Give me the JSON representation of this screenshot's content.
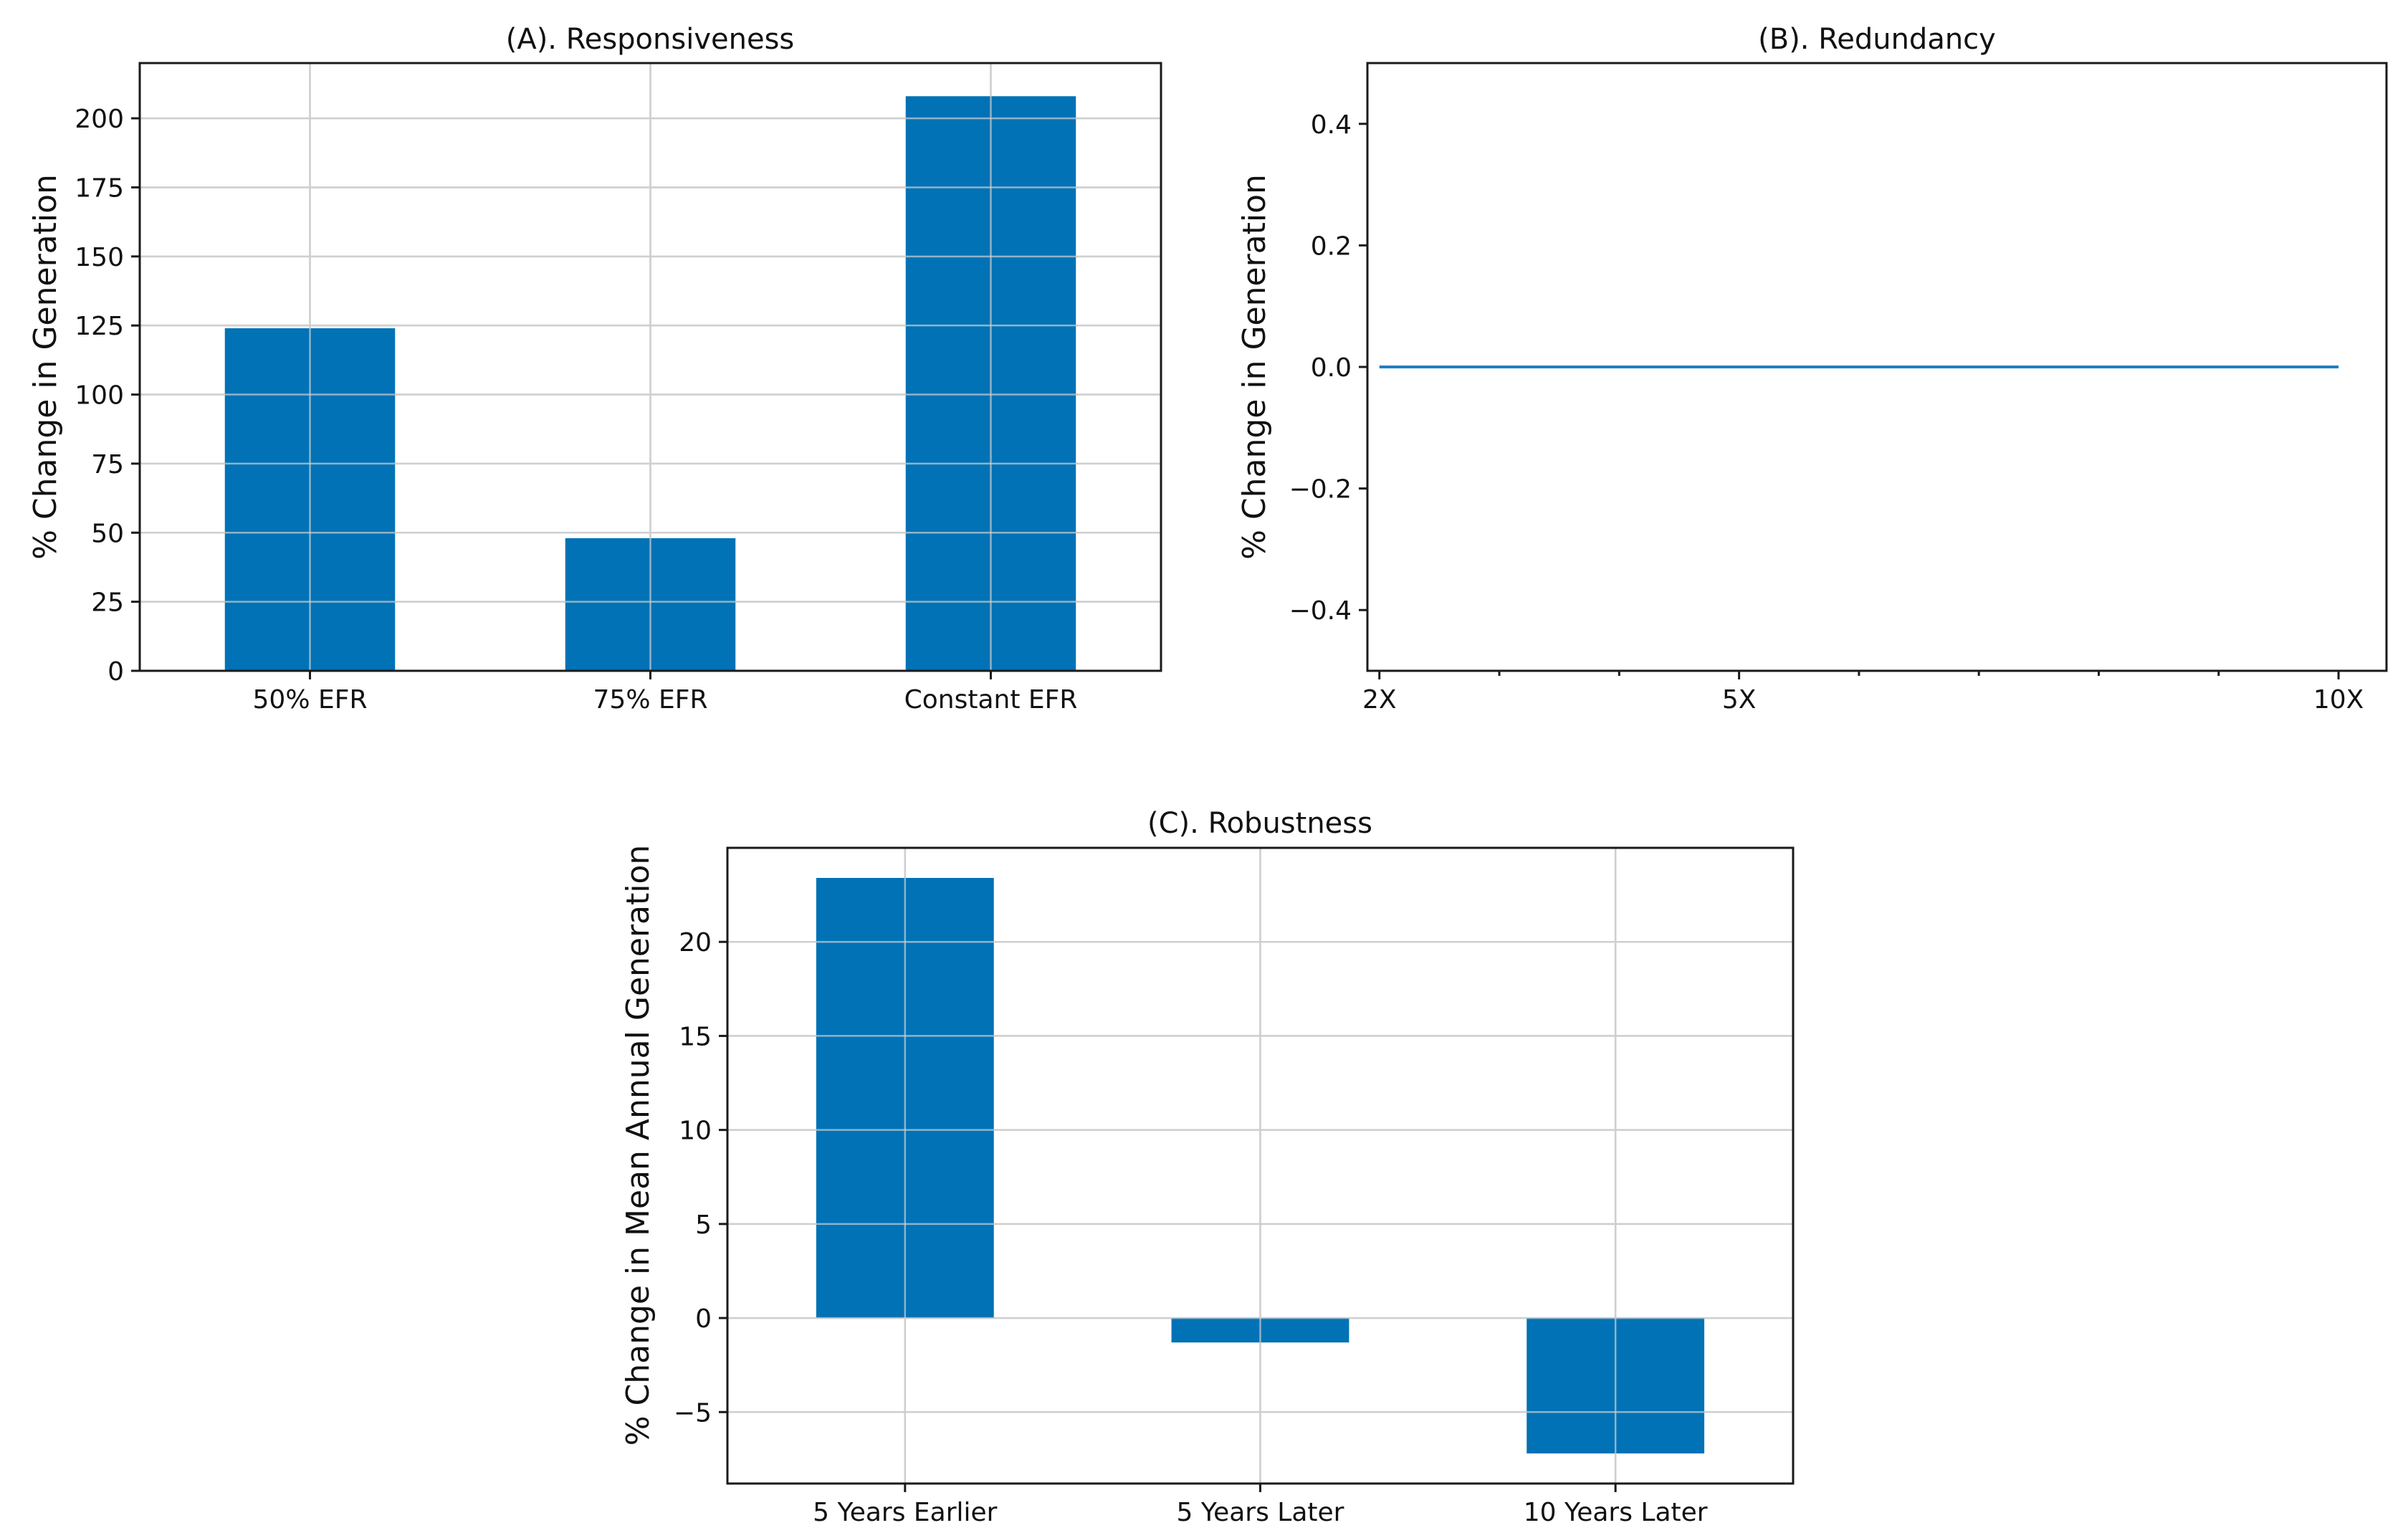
{
  "colors": {
    "bar": "#0072B5",
    "line": "#1f7fc0"
  },
  "chart_data": [
    {
      "id": "A",
      "type": "bar",
      "title": "(A). Responsiveness",
      "xlabel": "",
      "ylabel": "% Change in Generation",
      "categories": [
        "50% EFR",
        "75% EFR",
        "Constant EFR"
      ],
      "values": [
        124,
        48,
        208
      ],
      "ylim": [
        0,
        220
      ],
      "yticks": [
        0,
        25,
        50,
        75,
        100,
        125,
        150,
        175,
        200
      ],
      "ytick_labels": [
        "0",
        "25",
        "50",
        "75",
        "100",
        "125",
        "150",
        "175",
        "200"
      ],
      "grid": true
    },
    {
      "id": "B",
      "type": "line",
      "title": "(B). Redundancy",
      "xlabel": "",
      "ylabel": "% Change in Generation",
      "x": [
        2,
        3,
        4,
        5,
        6,
        7,
        8,
        9,
        10
      ],
      "values": [
        0,
        0,
        0,
        0,
        0,
        0,
        0,
        0,
        0
      ],
      "xlim": [
        1.9,
        10.4
      ],
      "xticks": [
        2,
        5,
        10
      ],
      "xtick_labels": [
        "2X",
        "5X",
        "10X"
      ],
      "ylim": [
        -0.5,
        0.5
      ],
      "yticks": [
        -0.4,
        -0.2,
        0.0,
        0.2,
        0.4
      ],
      "ytick_labels": [
        "−0.4",
        "−0.2",
        "0.0",
        "0.2",
        "0.4"
      ],
      "grid": false
    },
    {
      "id": "C",
      "type": "bar",
      "title": "(C). Robustness",
      "xlabel": "",
      "ylabel": "% Change in Mean Annual Generation",
      "categories": [
        "5 Years Earlier",
        "5 Years Later",
        "10 Years Later"
      ],
      "values": [
        23.4,
        -1.3,
        -7.2
      ],
      "ylim": [
        -8.8,
        25.0
      ],
      "yticks": [
        -5,
        0,
        5,
        10,
        15,
        20
      ],
      "ytick_labels": [
        "−5",
        "0",
        "5",
        "10",
        "15",
        "20"
      ],
      "grid": true
    }
  ]
}
